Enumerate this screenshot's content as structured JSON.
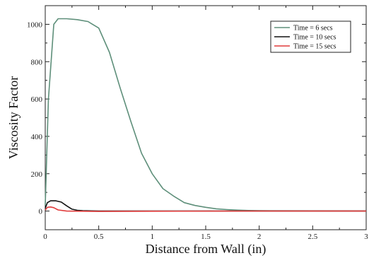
{
  "chart_data": {
    "type": "line",
    "title": "",
    "xlabel": "Distance from Wall (in)",
    "ylabel": "Viscosity Factor",
    "xlim": [
      0,
      3
    ],
    "ylim": [
      -100,
      1100
    ],
    "xticks": [
      0,
      0.5,
      1,
      1.5,
      2,
      2.5,
      3
    ],
    "xtick_labels": [
      "0",
      "0.5",
      "1",
      "1.5",
      "2",
      "2.5",
      "3"
    ],
    "yticks": [
      0,
      200,
      400,
      600,
      800,
      1000
    ],
    "ytick_labels": [
      "0",
      "200",
      "400",
      "600",
      "800",
      "1000"
    ],
    "grid": false,
    "legend_position": "top-right",
    "series": [
      {
        "name": "Time = 6 secs",
        "color": "#5e8f7a",
        "x": [
          0,
          0.03,
          0.08,
          0.12,
          0.2,
          0.3,
          0.4,
          0.5,
          0.6,
          0.7,
          0.8,
          0.9,
          1.0,
          1.1,
          1.2,
          1.3,
          1.4,
          1.5,
          1.6,
          1.7,
          1.8,
          1.9,
          2.0,
          2.5,
          3.0
        ],
        "y": [
          30,
          600,
          1000,
          1030,
          1030,
          1025,
          1015,
          980,
          850,
          660,
          480,
          310,
          200,
          120,
          80,
          45,
          30,
          20,
          12,
          8,
          5,
          3,
          2,
          1,
          0
        ]
      },
      {
        "name": "Time = 10 secs",
        "color": "#111111",
        "x": [
          0,
          0.02,
          0.05,
          0.1,
          0.15,
          0.2,
          0.25,
          0.3,
          0.35,
          0.5,
          1.0,
          2.0,
          3.0
        ],
        "y": [
          15,
          45,
          55,
          55,
          48,
          28,
          10,
          4,
          2,
          0,
          0,
          0,
          0
        ]
      },
      {
        "name": "Time = 15 secs",
        "color": "#e03a3a",
        "x": [
          0,
          0.02,
          0.05,
          0.08,
          0.12,
          0.2,
          0.5,
          1.0,
          2.0,
          3.0
        ],
        "y": [
          5,
          20,
          22,
          18,
          6,
          0,
          -2,
          -1,
          0,
          0
        ]
      }
    ]
  }
}
